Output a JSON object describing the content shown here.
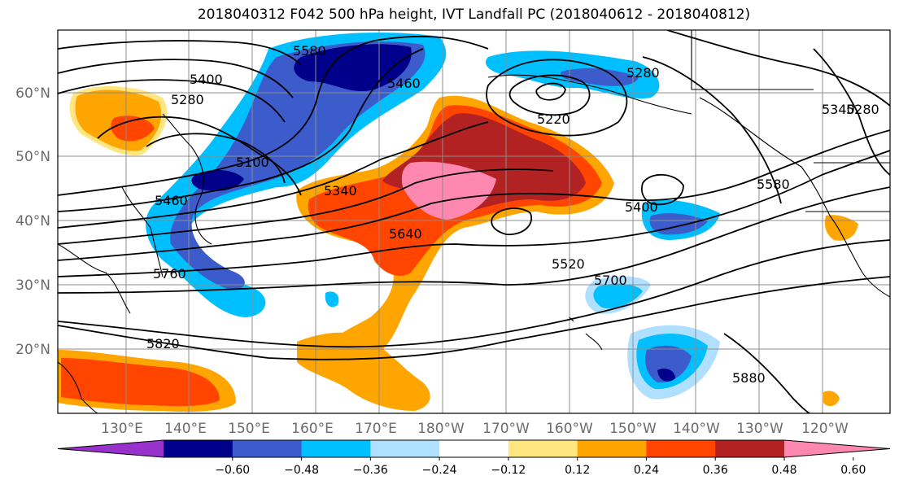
{
  "title": "2018040312 F042 500 hPa height, IVT Landfall PC (2018040612 - 2018040812)",
  "lat_labels": [
    "60°N",
    "50°N",
    "40°N",
    "30°N",
    "20°N"
  ],
  "lon_labels": [
    "130°E",
    "140°E",
    "150°E",
    "160°E",
    "170°E",
    "180°W",
    "170°W",
    "160°W",
    "150°W",
    "140°W",
    "130°W",
    "120°W"
  ],
  "colorbar": {
    "colors": [
      "#9932cc",
      "#00008b",
      "#3c5ccc",
      "#00bfff",
      "#b0e0ff",
      "#ffffff",
      "#ffe680",
      "#ffa500",
      "#ff4500",
      "#b22222",
      "#ff88b0"
    ],
    "tick_labels": [
      "−0.60",
      "−0.48",
      "−0.36",
      "−0.24",
      "−0.12",
      "0.12",
      "0.24",
      "0.36",
      "0.48",
      "0.60"
    ]
  },
  "contour_labels": [
    "5580",
    "5400",
    "5280",
    "5100",
    "5460",
    "5340",
    "5220",
    "5520",
    "5640",
    "5760",
    "5820",
    "5700",
    "5880",
    "5400",
    "5280",
    "5340",
    "5280",
    "5460",
    "5580"
  ]
}
